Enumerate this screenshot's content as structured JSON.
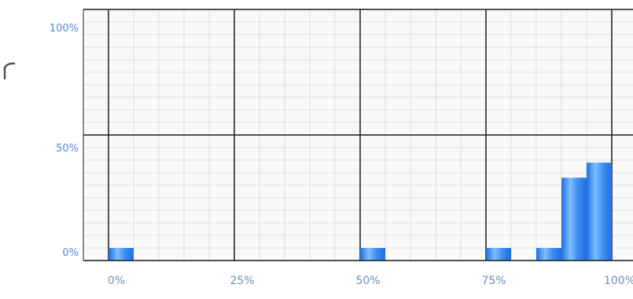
{
  "chart_data": {
    "type": "bar",
    "title": "",
    "xlabel": "",
    "ylabel": "",
    "x_ticks": [
      "0%",
      "25%",
      "50%",
      "75%",
      "100%"
    ],
    "y_ticks": [
      "100%",
      "50%",
      "0%"
    ],
    "xlim": [
      0,
      100
    ],
    "ylim": [
      0,
      100
    ],
    "bin_width": 5,
    "bins": [
      {
        "x_start": 0,
        "x_end": 5,
        "value": 5
      },
      {
        "x_start": 50,
        "x_end": 55,
        "value": 5
      },
      {
        "x_start": 75,
        "x_end": 80,
        "value": 5
      },
      {
        "x_start": 85,
        "x_end": 90,
        "value": 5
      },
      {
        "x_start": 90,
        "x_end": 95,
        "value": 33
      },
      {
        "x_start": 95,
        "x_end": 100,
        "value": 39
      }
    ],
    "grid": true,
    "colors": {
      "bar": "#3d8ef2",
      "bar_highlight": "#7cc0ff",
      "bar_dark": "#1f6fe0",
      "major_grid": "#1a1a1a",
      "minor_grid": "#e0e0e0",
      "background": "#f9f9f9",
      "x_tick_text": "#6d8fb8",
      "y_tick_text": "#4f88d8"
    }
  }
}
